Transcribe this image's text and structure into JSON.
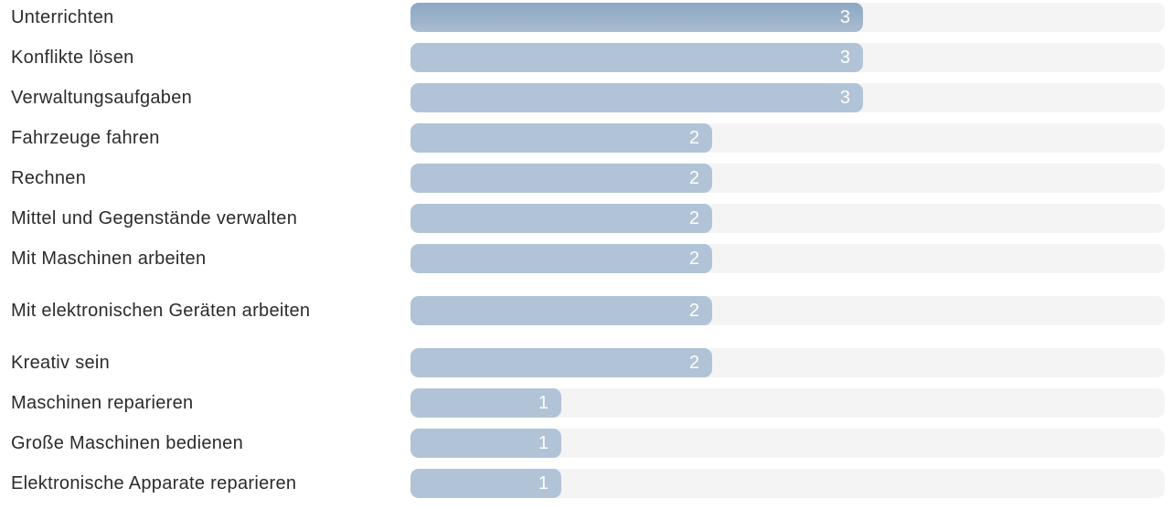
{
  "chart_data": {
    "type": "bar",
    "orientation": "horizontal",
    "xlim": [
      0,
      5
    ],
    "categories": [
      "Unterrichten",
      "Konflikte lösen",
      "Verwaltungsaufgaben",
      "Fahrzeuge fahren",
      "Rechnen",
      "Mittel und Gegenstände verwalten",
      "Mit Maschinen arbeiten",
      "Mit elektronischen Geräten arbeiten",
      "Kreativ sein",
      "Maschinen reparieren",
      "Große Maschinen bedienen",
      "Elektronische Apparate reparieren"
    ],
    "values": [
      3,
      3,
      3,
      2,
      2,
      2,
      2,
      2,
      2,
      1,
      1,
      1
    ],
    "bar_color": "#b1c3d6",
    "highlight_color": "#8da6c2",
    "track_color": "#f4f4f4",
    "value_label_color": "#ffffff",
    "grid": false,
    "legend": "none"
  }
}
